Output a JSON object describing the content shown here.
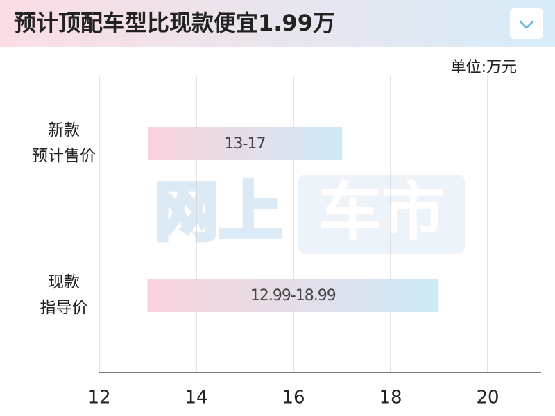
{
  "chart_data": {
    "type": "range-bar",
    "title": "预计顶配车型比现款便宜1.99万",
    "unit_label": "单位:万元",
    "watermark": [
      "网上",
      "车市"
    ],
    "categories": [
      [
        "新款",
        "预计售价"
      ],
      [
        "现款",
        "指导价"
      ]
    ],
    "values": [
      [
        13,
        17
      ],
      [
        12.99,
        18.99
      ]
    ],
    "value_labels": [
      "13-17",
      "12.99-18.99"
    ],
    "colors": [
      "#f9d2dc",
      "#cde9f6"
    ],
    "xlim": [
      12,
      21.1
    ],
    "xticks": [
      12,
      14,
      16,
      18,
      20
    ],
    "grid": true
  }
}
